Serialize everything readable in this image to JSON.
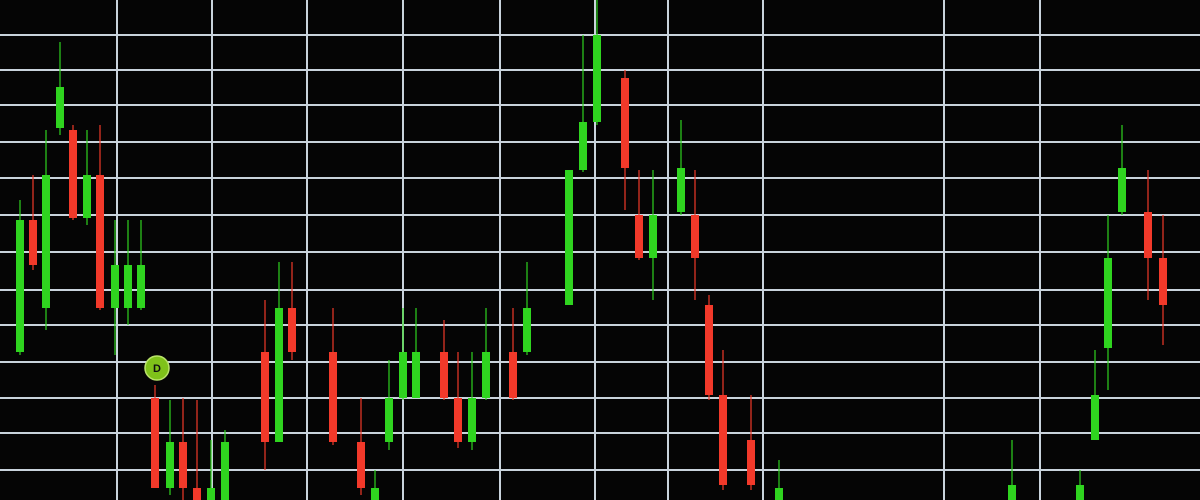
{
  "chart_data": {
    "type": "candlestick",
    "x": [
      20,
      33,
      46,
      60,
      73,
      87,
      100,
      115,
      128,
      141,
      155,
      170,
      183,
      197,
      211,
      225,
      265,
      279,
      292,
      333,
      361,
      375,
      389,
      403,
      416,
      444,
      458,
      472,
      486,
      513,
      527,
      569,
      583,
      597,
      625,
      639,
      653,
      681,
      695,
      709,
      723,
      751,
      779,
      1012,
      1080,
      1095,
      1108,
      1122,
      1148,
      1163
    ],
    "open": [
      148,
      280,
      192,
      372,
      370,
      282,
      325,
      192,
      192,
      192,
      102,
      12,
      58,
      12,
      0,
      0,
      148,
      58,
      192,
      148,
      58,
      0,
      58,
      102,
      102,
      148,
      102,
      58,
      102,
      148,
      148,
      195,
      330,
      378,
      422,
      285,
      242,
      288,
      285,
      195,
      105,
      60,
      0,
      0,
      0,
      60,
      152,
      288,
      288,
      242
    ],
    "close": [
      280,
      235,
      325,
      413,
      282,
      325,
      192,
      235,
      235,
      235,
      12,
      58,
      12,
      0,
      12,
      58,
      58,
      192,
      148,
      58,
      12,
      12,
      102,
      148,
      148,
      102,
      58,
      102,
      148,
      102,
      192,
      330,
      378,
      465,
      332,
      242,
      285,
      332,
      242,
      105,
      15,
      15,
      12,
      15,
      15,
      105,
      242,
      332,
      242,
      195
    ],
    "high": [
      300,
      325,
      370,
      458,
      375,
      370,
      375,
      280,
      280,
      280,
      115,
      100,
      102,
      100,
      60,
      70,
      200,
      238,
      238,
      192,
      102,
      30,
      140,
      192,
      192,
      180,
      148,
      148,
      192,
      192,
      238,
      330,
      465,
      500,
      430,
      330,
      330,
      380,
      330,
      205,
      150,
      105,
      40,
      60,
      30,
      150,
      285,
      375,
      330,
      285
    ],
    "low": [
      145,
      230,
      170,
      365,
      280,
      275,
      190,
      145,
      175,
      190,
      12,
      5,
      0,
      0,
      0,
      0,
      30,
      58,
      140,
      55,
      5,
      0,
      50,
      100,
      105,
      100,
      52,
      50,
      100,
      100,
      145,
      195,
      328,
      375,
      290,
      240,
      200,
      285,
      200,
      100,
      10,
      10,
      0,
      0,
      0,
      60,
      110,
      285,
      200,
      155
    ],
    "up_color": "#2fd41f",
    "down_color": "#f2392a",
    "xlim": [
      0,
      1200
    ],
    "ylim": [
      0,
      500
    ],
    "xticks": [
      117,
      212,
      307,
      403,
      500,
      595,
      668,
      763,
      944,
      1040
    ],
    "yticks": [
      30,
      67,
      102,
      138,
      175,
      210,
      248,
      285,
      322,
      358,
      395,
      430,
      465
    ],
    "grid": true,
    "annotations": [
      {
        "text": "D",
        "x": 157,
        "y": 132
      }
    ]
  }
}
